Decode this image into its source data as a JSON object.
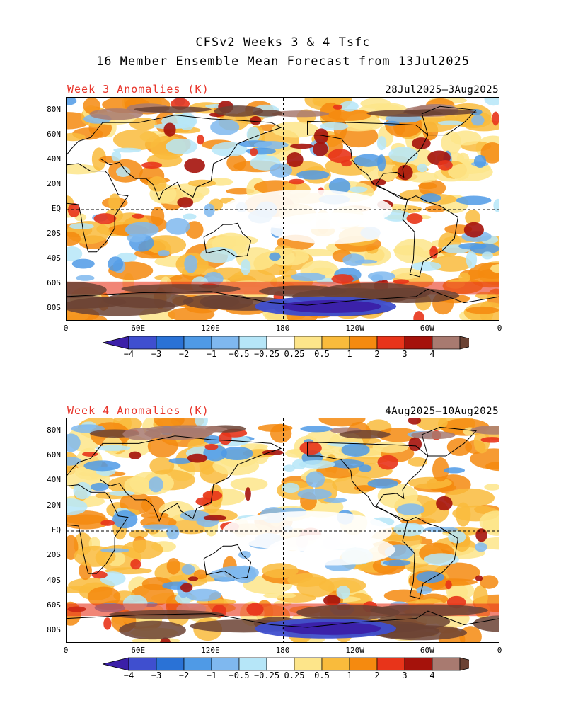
{
  "title_line1": "CFSv2 Weeks 3 & 4 Tsfc",
  "title_line2": "16 Member Ensemble Mean Forecast from 13Jul2025",
  "panels": [
    {
      "label": "Week 3 Anomalies (K)",
      "dates": "28Jul2025—3Aug2025"
    },
    {
      "label": "Week 4 Anomalies (K)",
      "dates": "4Aug2025—10Aug2025"
    }
  ],
  "lat_labels": [
    "80N",
    "60N",
    "40N",
    "20N",
    "EQ",
    "20S",
    "40S",
    "60S",
    "80S"
  ],
  "lon_labels": [
    "0",
    "60E",
    "120E",
    "180",
    "120W",
    "60W",
    "0"
  ],
  "colorbar": {
    "labels": [
      "−4",
      "−3",
      "−2",
      "−1",
      "−0.5",
      "−0.25",
      "0.25",
      "0.5",
      "1",
      "2",
      "3",
      "4"
    ],
    "colors": [
      "#3b1fa8",
      "#3f4fcf",
      "#2a72d6",
      "#4f9ae6",
      "#7fb8ef",
      "#b6e6f8",
      "#ffffff",
      "#fde58a",
      "#f9bb3c",
      "#f58a0f",
      "#e8341a",
      "#a5120b",
      "#a87a70",
      "#6b4234"
    ]
  }
}
